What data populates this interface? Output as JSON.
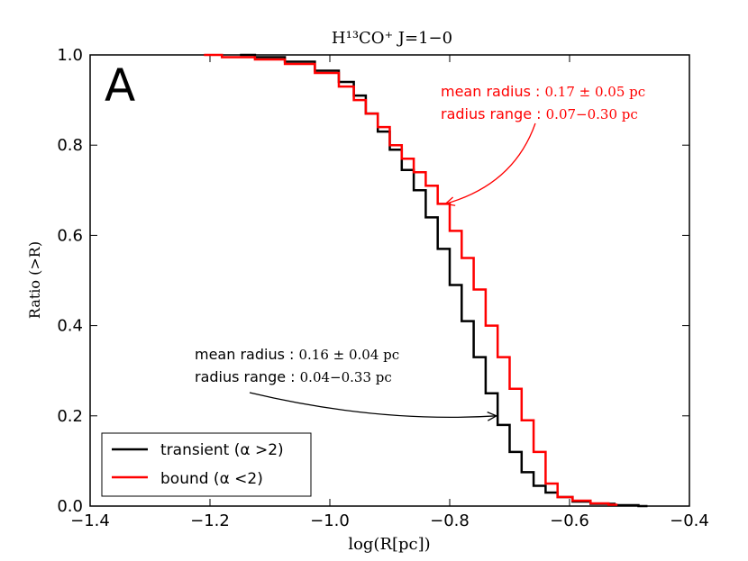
{
  "chart_data": {
    "type": "line",
    "title": "H¹³CO⁺  J=1−0",
    "panel_label": "A",
    "xlabel": "log(R[pc])",
    "ylabel": "Ratio (>R)",
    "xlim": [
      -1.4,
      -0.4
    ],
    "ylim": [
      0.0,
      1.0
    ],
    "x_ticks": [
      -1.4,
      -1.2,
      -1.0,
      -0.8,
      -0.6,
      -0.4
    ],
    "x_tick_labels": [
      "−1.4",
      "−1.2",
      "−1.0",
      "−0.8",
      "−0.6",
      "−0.4"
    ],
    "y_ticks": [
      0.0,
      0.2,
      0.4,
      0.6,
      0.8,
      1.0
    ],
    "y_tick_labels": [
      "0.0",
      "0.2",
      "0.4",
      "0.6",
      "0.8",
      "1.0"
    ],
    "grid": false,
    "legend_position": "lower-left",
    "series": [
      {
        "name": "transient",
        "legend_label": "transient (α >2)",
        "color": "#000000",
        "points": [
          [
            -1.15,
            1.0
          ],
          [
            -1.1,
            0.995
          ],
          [
            -1.05,
            0.985
          ],
          [
            -1.0,
            0.965
          ],
          [
            -0.97,
            0.94
          ],
          [
            -0.95,
            0.91
          ],
          [
            -0.93,
            0.87
          ],
          [
            -0.91,
            0.83
          ],
          [
            -0.89,
            0.79
          ],
          [
            -0.87,
            0.745
          ],
          [
            -0.85,
            0.7
          ],
          [
            -0.83,
            0.64
          ],
          [
            -0.81,
            0.57
          ],
          [
            -0.79,
            0.49
          ],
          [
            -0.77,
            0.41
          ],
          [
            -0.75,
            0.33
          ],
          [
            -0.73,
            0.25
          ],
          [
            -0.71,
            0.18
          ],
          [
            -0.69,
            0.12
          ],
          [
            -0.67,
            0.075
          ],
          [
            -0.65,
            0.045
          ],
          [
            -0.63,
            0.03
          ],
          [
            -0.61,
            0.02
          ],
          [
            -0.58,
            0.01
          ],
          [
            -0.55,
            0.005
          ],
          [
            -0.5,
            0.002
          ],
          [
            -0.47,
            0.0
          ]
        ]
      },
      {
        "name": "bound",
        "legend_label": "bound (α <2)",
        "color": "#ff0000",
        "points": [
          [
            -1.21,
            1.0
          ],
          [
            -1.15,
            0.995
          ],
          [
            -1.1,
            0.99
          ],
          [
            -1.05,
            0.98
          ],
          [
            -1.0,
            0.96
          ],
          [
            -0.97,
            0.93
          ],
          [
            -0.95,
            0.9
          ],
          [
            -0.93,
            0.87
          ],
          [
            -0.91,
            0.84
          ],
          [
            -0.89,
            0.8
          ],
          [
            -0.87,
            0.77
          ],
          [
            -0.85,
            0.74
          ],
          [
            -0.83,
            0.71
          ],
          [
            -0.81,
            0.67
          ],
          [
            -0.79,
            0.61
          ],
          [
            -0.77,
            0.55
          ],
          [
            -0.75,
            0.48
          ],
          [
            -0.73,
            0.4
          ],
          [
            -0.71,
            0.33
          ],
          [
            -0.69,
            0.26
          ],
          [
            -0.67,
            0.19
          ],
          [
            -0.65,
            0.12
          ],
          [
            -0.63,
            0.05
          ],
          [
            -0.61,
            0.02
          ],
          [
            -0.58,
            0.012
          ],
          [
            -0.55,
            0.006
          ],
          [
            -0.52,
            0.003
          ]
        ]
      }
    ],
    "annotations": [
      {
        "series": "bound",
        "color": "#ff0000",
        "line1_label": "mean radius : ",
        "line1_value": "0.17 ± 0.05 pc",
        "line2_label": "radius range : ",
        "line2_value": "0.07−0.30 pc",
        "arrow_to": [
          -0.81,
          0.67
        ]
      },
      {
        "series": "transient",
        "color": "#000000",
        "line1_label": "mean radius : ",
        "line1_value": "0.16 ± 0.04 pc",
        "line2_label": "radius range : ",
        "line2_value": "0.04−0.33 pc",
        "arrow_to": [
          -0.725,
          0.2
        ]
      }
    ]
  }
}
